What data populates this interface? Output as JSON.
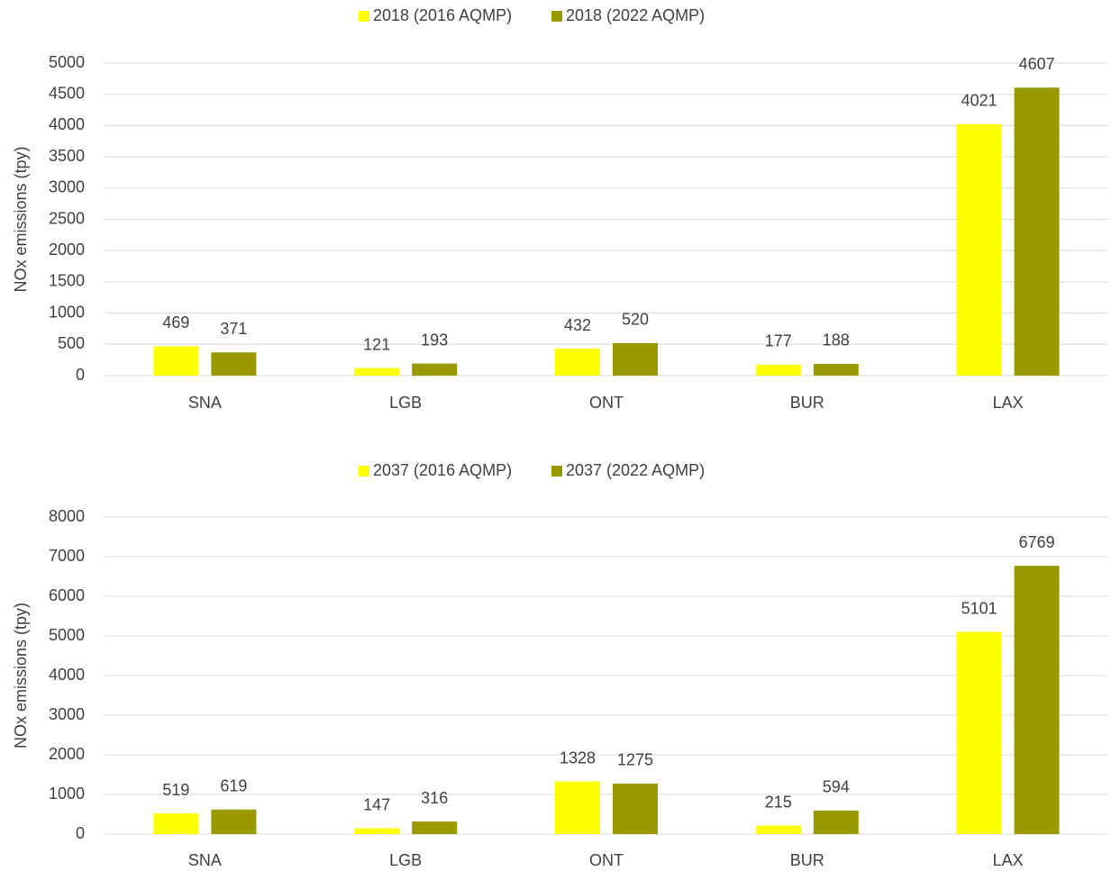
{
  "chart_data": [
    {
      "type": "bar",
      "y_label": "NOx emissions (tpy)",
      "categories": [
        "SNA",
        "LGB",
        "ONT",
        "BUR",
        "LAX"
      ],
      "series": [
        {
          "name": "2018 (2016 AQMP)",
          "color": "#ffff00",
          "values": [
            469,
            121,
            432,
            177,
            4021
          ]
        },
        {
          "name": "2018 (2022 AQMP)",
          "color": "#999900",
          "values": [
            371,
            193,
            520,
            188,
            4607
          ]
        }
      ],
      "ylim": [
        0,
        5000
      ],
      "yticks": [
        0,
        500,
        1000,
        1500,
        2000,
        2500,
        3000,
        3500,
        4000,
        4500,
        5000
      ],
      "grid": true,
      "legend": "top"
    },
    {
      "type": "bar",
      "y_label": "NOx emissions (tpy)",
      "categories": [
        "SNA",
        "LGB",
        "ONT",
        "BUR",
        "LAX"
      ],
      "series": [
        {
          "name": "2037 (2016 AQMP)",
          "color": "#ffff00",
          "values": [
            519,
            147,
            1328,
            215,
            5101
          ]
        },
        {
          "name": "2037 (2022 AQMP)",
          "color": "#999900",
          "values": [
            619,
            316,
            1275,
            594,
            6769
          ]
        }
      ],
      "ylim": [
        0,
        8000
      ],
      "yticks": [
        0,
        1000,
        2000,
        3000,
        4000,
        5000,
        6000,
        7000,
        8000
      ],
      "grid": true,
      "legend": "top"
    }
  ]
}
